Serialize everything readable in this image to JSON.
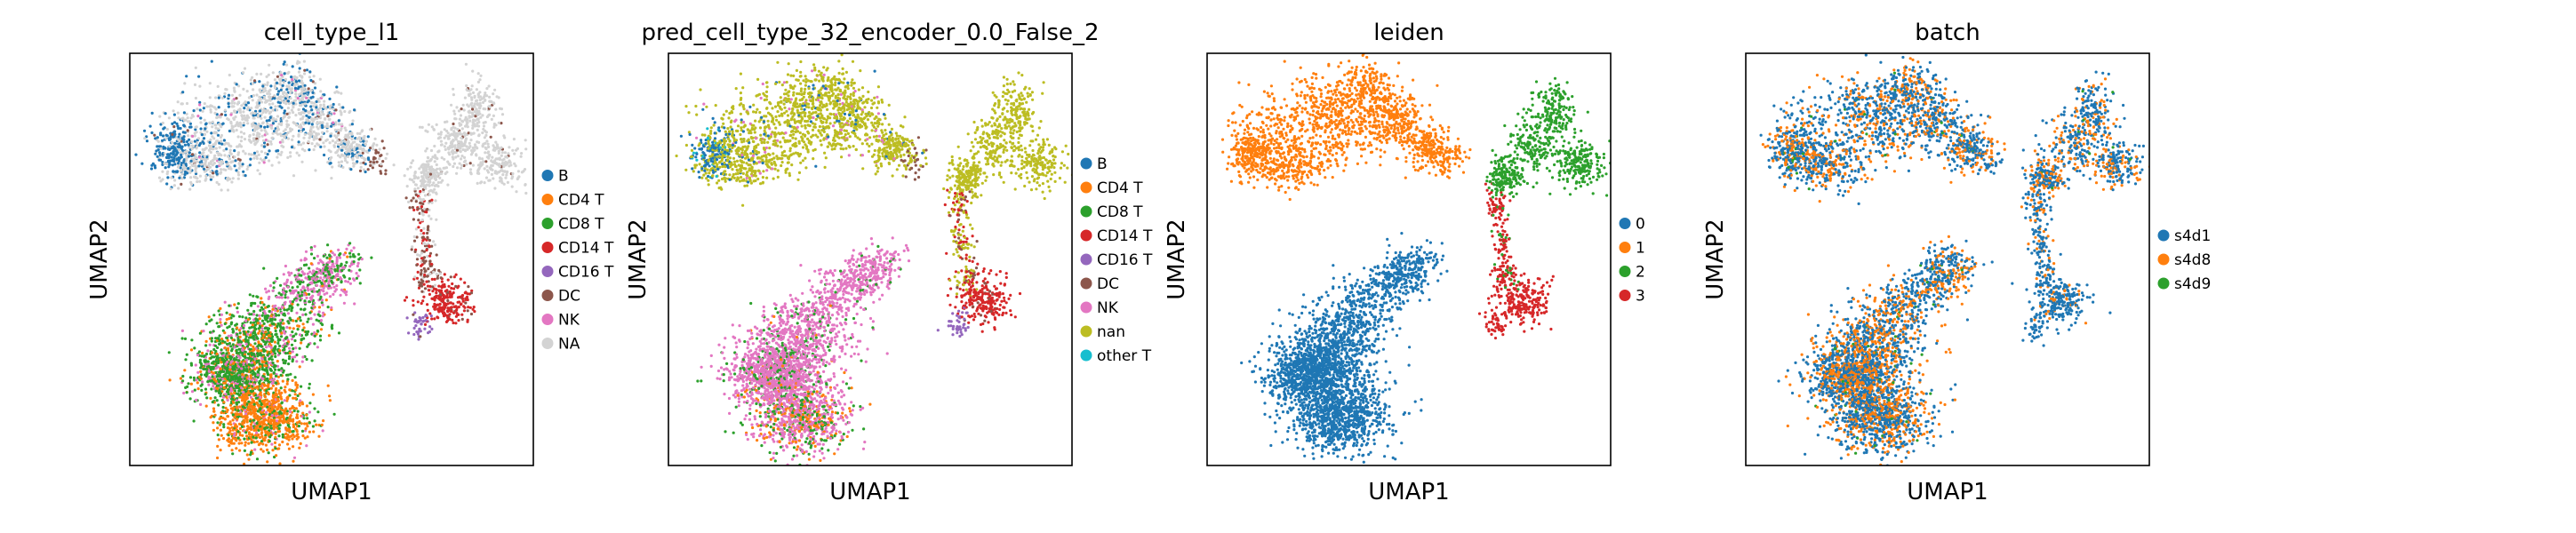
{
  "chart_data": [
    {
      "type": "scatter",
      "title": "cell_type_l1",
      "xlabel": "UMAP1",
      "ylabel": "UMAP2",
      "legend": [
        {
          "label": "B",
          "color": "#1f77b4"
        },
        {
          "label": "CD4 T",
          "color": "#ff7f0e"
        },
        {
          "label": "CD8 T",
          "color": "#2ca02c"
        },
        {
          "label": "CD14 T",
          "color": "#d62728"
        },
        {
          "label": "CD16 T",
          "color": "#9467bd"
        },
        {
          "label": "DC",
          "color": "#8c564b"
        },
        {
          "label": "NK",
          "color": "#e377c2"
        },
        {
          "label": "NA",
          "color": "#d3d3d3"
        }
      ],
      "clusters": [
        {
          "region": "upper-left-arc",
          "mix": {
            "NA": 0.72,
            "B": 0.24,
            "DC": 0.02,
            "NK": 0.02
          }
        },
        {
          "region": "upper-left-left-end",
          "mix": {
            "B": 0.9,
            "NA": 0.1
          }
        },
        {
          "region": "upper-left-tail",
          "mix": {
            "DC": 0.6,
            "NA": 0.4
          }
        },
        {
          "region": "upper-right-arc",
          "mix": {
            "NA": 0.97,
            "DC": 0.03
          }
        },
        {
          "region": "stalk",
          "mix": {
            "DC": 0.55,
            "CD14 T": 0.25,
            "NA": 0.2
          }
        },
        {
          "region": "right-blob",
          "mix": {
            "CD14 T": 0.9,
            "DC": 0.1
          }
        },
        {
          "region": "right-blob-bottom",
          "mix": {
            "CD16 T": 1.0
          }
        },
        {
          "region": "bottom-cloud-top",
          "mix": {
            "NK": 0.55,
            "CD8 T": 0.4,
            "CD4 T": 0.05
          }
        },
        {
          "region": "bottom-cloud-middle",
          "mix": {
            "CD8 T": 0.62,
            "NK": 0.2,
            "CD4 T": 0.18
          }
        },
        {
          "region": "bottom-cloud-bottom",
          "mix": {
            "CD4 T": 0.75,
            "CD8 T": 0.2,
            "NK": 0.05
          }
        }
      ]
    },
    {
      "type": "scatter",
      "title": "pred_cell_type_32_encoder_0.0_False_2",
      "xlabel": "UMAP1",
      "ylabel": "UMAP2",
      "legend": [
        {
          "label": "B",
          "color": "#1f77b4"
        },
        {
          "label": "CD4 T",
          "color": "#ff7f0e"
        },
        {
          "label": "CD8 T",
          "color": "#2ca02c"
        },
        {
          "label": "CD14 T",
          "color": "#d62728"
        },
        {
          "label": "CD16 T",
          "color": "#9467bd"
        },
        {
          "label": "DC",
          "color": "#8c564b"
        },
        {
          "label": "NK",
          "color": "#e377c2"
        },
        {
          "label": "nan",
          "color": "#bcbd22"
        },
        {
          "label": "other T",
          "color": "#17becf"
        }
      ],
      "clusters": [
        {
          "region": "upper-left-arc",
          "mix": {
            "nan": 0.9,
            "NK": 0.06,
            "B": 0.04
          }
        },
        {
          "region": "upper-left-left-end",
          "mix": {
            "B": 0.5,
            "nan": 0.4,
            "other T": 0.1
          }
        },
        {
          "region": "upper-left-tail",
          "mix": {
            "DC": 0.5,
            "nan": 0.5
          }
        },
        {
          "region": "upper-right-arc",
          "mix": {
            "nan": 1.0
          }
        },
        {
          "region": "stalk",
          "mix": {
            "nan": 0.5,
            "CD14 T": 0.35,
            "DC": 0.15
          }
        },
        {
          "region": "right-blob",
          "mix": {
            "CD14 T": 0.95,
            "DC": 0.05
          }
        },
        {
          "region": "right-blob-bottom",
          "mix": {
            "CD16 T": 1.0
          }
        },
        {
          "region": "bottom-cloud-top",
          "mix": {
            "NK": 0.92,
            "CD8 T": 0.08
          }
        },
        {
          "region": "bottom-cloud-middle",
          "mix": {
            "NK": 0.85,
            "CD8 T": 0.13,
            "CD4 T": 0.02
          }
        },
        {
          "region": "bottom-cloud-bottom",
          "mix": {
            "NK": 0.6,
            "CD8 T": 0.2,
            "CD4 T": 0.2
          }
        }
      ]
    },
    {
      "type": "scatter",
      "title": "leiden",
      "xlabel": "UMAP1",
      "ylabel": "UMAP2",
      "legend": [
        {
          "label": "0",
          "color": "#1f77b4"
        },
        {
          "label": "1",
          "color": "#ff7f0e"
        },
        {
          "label": "2",
          "color": "#2ca02c"
        },
        {
          "label": "3",
          "color": "#d62728"
        }
      ],
      "clusters": [
        {
          "region": "upper-left-arc",
          "mix": {
            "1": 1.0
          }
        },
        {
          "region": "upper-left-left-end",
          "mix": {
            "1": 1.0
          }
        },
        {
          "region": "upper-left-tail",
          "mix": {
            "1": 1.0
          }
        },
        {
          "region": "upper-right-arc",
          "mix": {
            "2": 1.0
          }
        },
        {
          "region": "stalk",
          "mix": {
            "3": 0.85,
            "2": 0.15
          }
        },
        {
          "region": "right-blob",
          "mix": {
            "3": 1.0
          }
        },
        {
          "region": "right-blob-bottom",
          "mix": {
            "3": 1.0
          }
        },
        {
          "region": "bottom-cloud-top",
          "mix": {
            "0": 1.0
          }
        },
        {
          "region": "bottom-cloud-middle",
          "mix": {
            "0": 1.0
          }
        },
        {
          "region": "bottom-cloud-bottom",
          "mix": {
            "0": 1.0
          }
        }
      ]
    },
    {
      "type": "scatter",
      "title": "batch",
      "xlabel": "UMAP1",
      "ylabel": "UMAP2",
      "legend": [
        {
          "label": "s4d1",
          "color": "#1f77b4"
        },
        {
          "label": "s4d8",
          "color": "#ff7f0e"
        },
        {
          "label": "s4d9",
          "color": "#2ca02c"
        }
      ],
      "clusters": [
        {
          "region": "upper-left-arc",
          "mix": {
            "s4d1": 0.68,
            "s4d8": 0.3,
            "s4d9": 0.02
          }
        },
        {
          "region": "upper-left-left-end",
          "mix": {
            "s4d1": 0.6,
            "s4d8": 0.38,
            "s4d9": 0.02
          }
        },
        {
          "region": "upper-left-tail",
          "mix": {
            "s4d1": 0.6,
            "s4d8": 0.4
          }
        },
        {
          "region": "upper-right-arc",
          "mix": {
            "s4d1": 0.62,
            "s4d8": 0.36,
            "s4d9": 0.02
          }
        },
        {
          "region": "stalk",
          "mix": {
            "s4d1": 0.8,
            "s4d8": 0.2
          }
        },
        {
          "region": "right-blob",
          "mix": {
            "s4d1": 0.9,
            "s4d8": 0.1
          }
        },
        {
          "region": "right-blob-bottom",
          "mix": {
            "s4d1": 1.0
          }
        },
        {
          "region": "bottom-cloud-top",
          "mix": {
            "s4d1": 0.6,
            "s4d8": 0.38,
            "s4d9": 0.02
          }
        },
        {
          "region": "bottom-cloud-middle",
          "mix": {
            "s4d1": 0.55,
            "s4d8": 0.43,
            "s4d9": 0.02
          }
        },
        {
          "region": "bottom-cloud-bottom",
          "mix": {
            "s4d1": 0.6,
            "s4d8": 0.38,
            "s4d9": 0.02
          }
        }
      ]
    }
  ]
}
